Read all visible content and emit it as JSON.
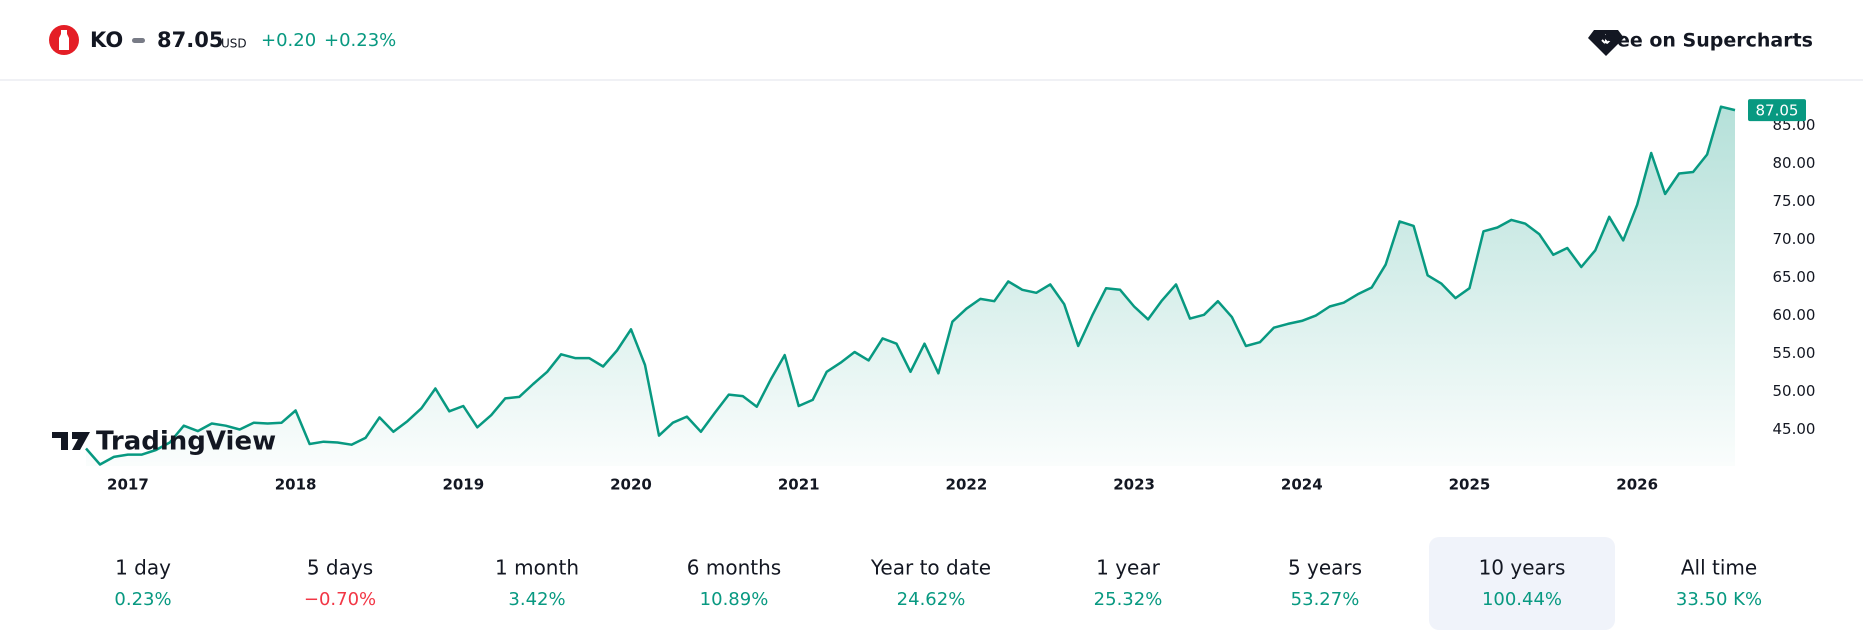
{
  "header": {
    "symbol": "KO",
    "price": "87.05",
    "currency": "USD",
    "change": "+0.20",
    "change_percent": "+0.23%",
    "link": "See on Supercharts"
  },
  "chart_data": {
    "type": "line",
    "watermark": "TradingView",
    "categories": [
      null,
      null,
      null,
      "2017",
      null,
      null,
      null,
      null,
      null,
      null,
      null,
      null,
      null,
      null,
      null,
      "2018",
      null,
      null,
      null,
      null,
      null,
      null,
      null,
      null,
      null,
      null,
      null,
      "2019",
      null,
      null,
      null,
      null,
      null,
      null,
      null,
      null,
      null,
      null,
      null,
      "2020",
      null,
      null,
      null,
      null,
      null,
      null,
      null,
      null,
      null,
      null,
      null,
      "2021",
      null,
      null,
      null,
      null,
      null,
      null,
      null,
      null,
      null,
      null,
      null,
      "2022",
      null,
      null,
      null,
      null,
      null,
      null,
      null,
      null,
      null,
      null,
      null,
      "2023",
      null,
      null,
      null,
      null,
      null,
      null,
      null,
      null,
      null,
      null,
      null,
      "2024",
      null,
      null,
      null,
      null,
      null,
      null,
      null,
      null,
      null,
      null,
      null,
      "2025",
      null,
      null,
      null,
      null,
      null,
      null,
      null,
      null,
      null,
      null,
      null,
      "2026",
      null,
      null,
      null,
      null,
      null,
      null,
      null
    ],
    "series": [
      {
        "name": "KO",
        "color": "#089981",
        "values": [
          42.5,
          40.4,
          41.4,
          41.7,
          41.7,
          42.3,
          43.3,
          45.5,
          44.8,
          45.8,
          45.5,
          45.0,
          45.9,
          45.8,
          45.9,
          47.5,
          43.1,
          43.4,
          43.3,
          43.0,
          43.9,
          46.6,
          44.7,
          46.1,
          47.8,
          50.4,
          47.4,
          48.1,
          45.3,
          46.9,
          49.1,
          49.3,
          51.0,
          52.6,
          54.9,
          54.4,
          54.4,
          53.3,
          55.4,
          58.2,
          53.5,
          44.2,
          45.9,
          46.7,
          44.7,
          47.2,
          49.6,
          49.4,
          48.0,
          51.6,
          54.8,
          48.1,
          48.9,
          52.6,
          53.8,
          55.2,
          54.1,
          57.0,
          56.3,
          52.6,
          56.3,
          52.4,
          59.2,
          60.9,
          62.2,
          61.9,
          64.5,
          63.4,
          63.0,
          64.1,
          61.5,
          56.0,
          60.0,
          63.6,
          63.4,
          61.2,
          59.5,
          62.0,
          64.1,
          59.6,
          60.1,
          61.9,
          59.8,
          56.0,
          56.5,
          58.4,
          58.9,
          59.3,
          60.0,
          61.2,
          61.7,
          62.8,
          63.7,
          66.7,
          72.4,
          71.8,
          65.3,
          64.2,
          62.3,
          63.6,
          71.1,
          71.6,
          72.6,
          72.1,
          70.7,
          68.0,
          68.9,
          66.4,
          68.6,
          73.0,
          69.9,
          74.6,
          81.4,
          76.0,
          78.7,
          78.9,
          81.2,
          87.5,
          87.05
        ]
      }
    ],
    "ylim": [
      40.2,
      89.3
    ],
    "yticks": [
      {
        "value": 45,
        "label": "45.00"
      },
      {
        "value": 50,
        "label": "50.00"
      },
      {
        "value": 55,
        "label": "55.00"
      },
      {
        "value": 60,
        "label": "60.00"
      },
      {
        "value": 65,
        "label": "65.00"
      },
      {
        "value": 70,
        "label": "70.00"
      },
      {
        "value": 75,
        "label": "75.00"
      },
      {
        "value": 80,
        "label": "80.00"
      },
      {
        "value": 85,
        "label": "85.00"
      }
    ],
    "last_label": "87.05",
    "grid": false
  },
  "periods": [
    {
      "label": "1 day",
      "change": "0.23%",
      "color": "#089981"
    },
    {
      "label": "5 days",
      "change": "−0.70%",
      "color": "#f23645"
    },
    {
      "label": "1 month",
      "change": "3.42%",
      "color": "#089981"
    },
    {
      "label": "6 months",
      "change": "10.89%",
      "color": "#089981"
    },
    {
      "label": "Year to date",
      "change": "24.62%",
      "color": "#089981"
    },
    {
      "label": "1 year",
      "change": "25.32%",
      "color": "#089981"
    },
    {
      "label": "5 years",
      "change": "53.27%",
      "color": "#089981"
    },
    {
      "label": "10 years",
      "change": "100.44%",
      "color": "#089981",
      "selected": true
    },
    {
      "label": "All time",
      "change": "33.50 K%",
      "color": "#089981"
    }
  ]
}
